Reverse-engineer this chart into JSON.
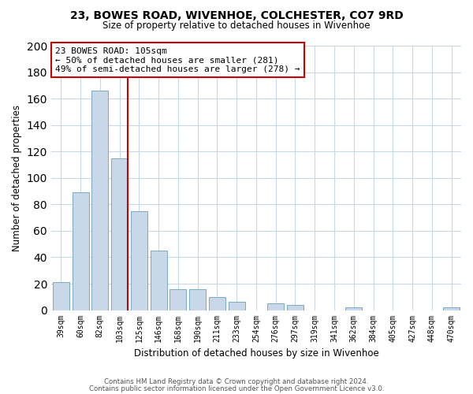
{
  "title": "23, BOWES ROAD, WIVENHOE, COLCHESTER, CO7 9RD",
  "subtitle": "Size of property relative to detached houses in Wivenhoe",
  "xlabel": "Distribution of detached houses by size in Wivenhoe",
  "ylabel": "Number of detached properties",
  "bar_labels": [
    "39sqm",
    "60sqm",
    "82sqm",
    "103sqm",
    "125sqm",
    "146sqm",
    "168sqm",
    "190sqm",
    "211sqm",
    "233sqm",
    "254sqm",
    "276sqm",
    "297sqm",
    "319sqm",
    "341sqm",
    "362sqm",
    "384sqm",
    "405sqm",
    "427sqm",
    "448sqm",
    "470sqm"
  ],
  "bar_values": [
    21,
    89,
    166,
    115,
    75,
    45,
    16,
    16,
    10,
    6,
    0,
    5,
    4,
    0,
    0,
    2,
    0,
    0,
    0,
    0,
    2
  ],
  "bar_color": "#c8d8e8",
  "bar_edgecolor": "#7aaac8",
  "vline_index": 3,
  "vline_color": "#cc0000",
  "annotation_line1": "23 BOWES ROAD: 105sqm",
  "annotation_line2": "← 50% of detached houses are smaller (281)",
  "annotation_line3": "49% of semi-detached houses are larger (278) →",
  "annotation_box_color": "#ffffff",
  "annotation_box_edgecolor": "#cc0000",
  "ylim": [
    0,
    200
  ],
  "yticks": [
    0,
    20,
    40,
    60,
    80,
    100,
    120,
    140,
    160,
    180,
    200
  ],
  "footer_line1": "Contains HM Land Registry data © Crown copyright and database right 2024.",
  "footer_line2": "Contains public sector information licensed under the Open Government Licence v3.0.",
  "background_color": "#ffffff",
  "grid_color": "#c8d8e8"
}
